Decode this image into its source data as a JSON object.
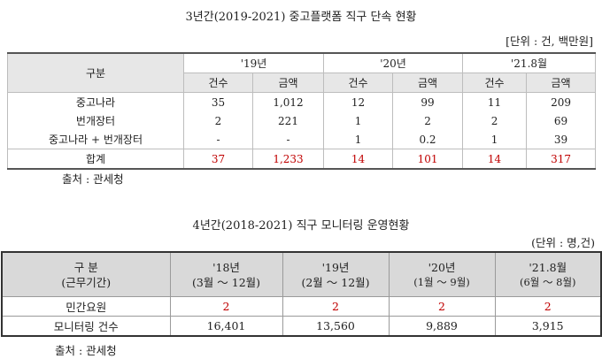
{
  "table1": {
    "title": "3년간(2019-2021) 중고플랫폼 직구 단속 현황",
    "unit": "[단위 : 건, 백만원]",
    "header": {
      "category": "구분",
      "years": [
        "'19년",
        "'20년",
        "'21.8월"
      ],
      "count": "건수",
      "amount": "금액"
    },
    "rows": [
      {
        "label": "중고나라",
        "values": [
          "35",
          "1,012",
          "12",
          "99",
          "11",
          "209"
        ]
      },
      {
        "label": "번개장터",
        "values": [
          "2",
          "221",
          "1",
          "2",
          "2",
          "69"
        ]
      },
      {
        "label": "중고나라 + 번개장터",
        "values": [
          "-",
          "-",
          "1",
          "0.2",
          "1",
          "39"
        ]
      }
    ],
    "total": {
      "label": "합계",
      "values": [
        "37",
        "1,233",
        "14",
        "101",
        "14",
        "317"
      ]
    },
    "source": "출처 : 관세청"
  },
  "table2": {
    "title": "4년간(2018-2021) 직구 모니터링 운영현황",
    "unit": "(단위 : 명,건)",
    "header": {
      "category_line1": "구  분",
      "category_line2": "(근무기간)",
      "years": [
        {
          "year": "'18년",
          "period": "(3월 ～ 12월)"
        },
        {
          "year": "'19년",
          "period": "(2월 ～ 12월)"
        },
        {
          "year": "'20년",
          "period": "(1월 ～ 9월)"
        },
        {
          "year": "'21.8월",
          "period": "(6월 ～ 8월)"
        }
      ]
    },
    "rows": [
      {
        "label": "민간요원",
        "values": [
          "2",
          "2",
          "2",
          "2"
        ]
      },
      {
        "label": "모니터링 건수",
        "values": [
          "16,401",
          "13,560",
          "9,889",
          "3,915"
        ]
      }
    ],
    "source": "출처 : 관세청"
  }
}
